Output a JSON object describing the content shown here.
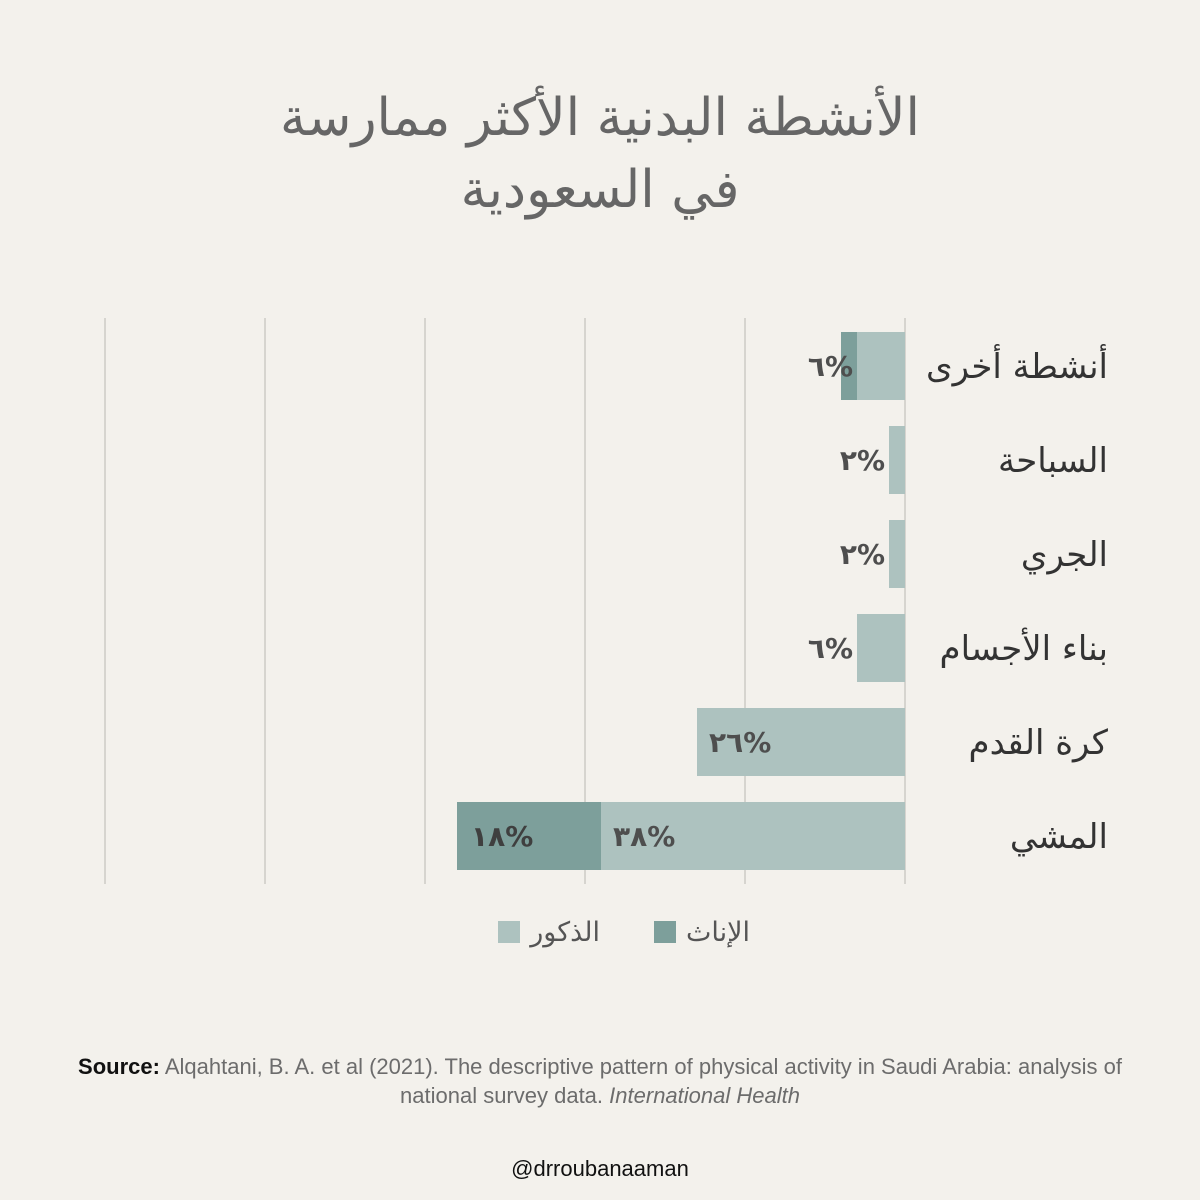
{
  "title": {
    "line1": "الأنشطة البدنية الأكثر ممارسة",
    "line2": "في السعودية"
  },
  "chart_data": {
    "type": "bar",
    "orientation": "horizontal",
    "stacked": true,
    "categories": [
      "أنشطة أخرى",
      "السباحة",
      "الجري",
      "بناء الأجسام",
      "كرة القدم",
      "المشي"
    ],
    "series": [
      {
        "name": "الذكور",
        "color": "#adc2bf",
        "values": [
          6,
          2,
          2,
          6,
          26,
          38
        ],
        "labels": [
          "٦%",
          "٢%",
          "٢%",
          "٦%",
          "٢٦%",
          "٣٨%"
        ]
      },
      {
        "name": "الإناث",
        "color": "#7d9f9b",
        "values": [
          2,
          0,
          0,
          0,
          0,
          18
        ],
        "labels": [
          "",
          "",
          "",
          "",
          "",
          "١٨%"
        ]
      }
    ],
    "xlim": [
      0,
      100
    ],
    "grid_step": 20,
    "grid": true,
    "legend": "bottom-center"
  },
  "legend": {
    "female_label": "الإناث",
    "male_label": "الذكور"
  },
  "source": {
    "prefix": "Source:",
    "text": "Alqahtani, B. A. et al (2021). The descriptive pattern of physical activity in Saudi Arabia: analysis of national survey data.",
    "journal": "International Health"
  },
  "handle": "@drroubanaaman"
}
